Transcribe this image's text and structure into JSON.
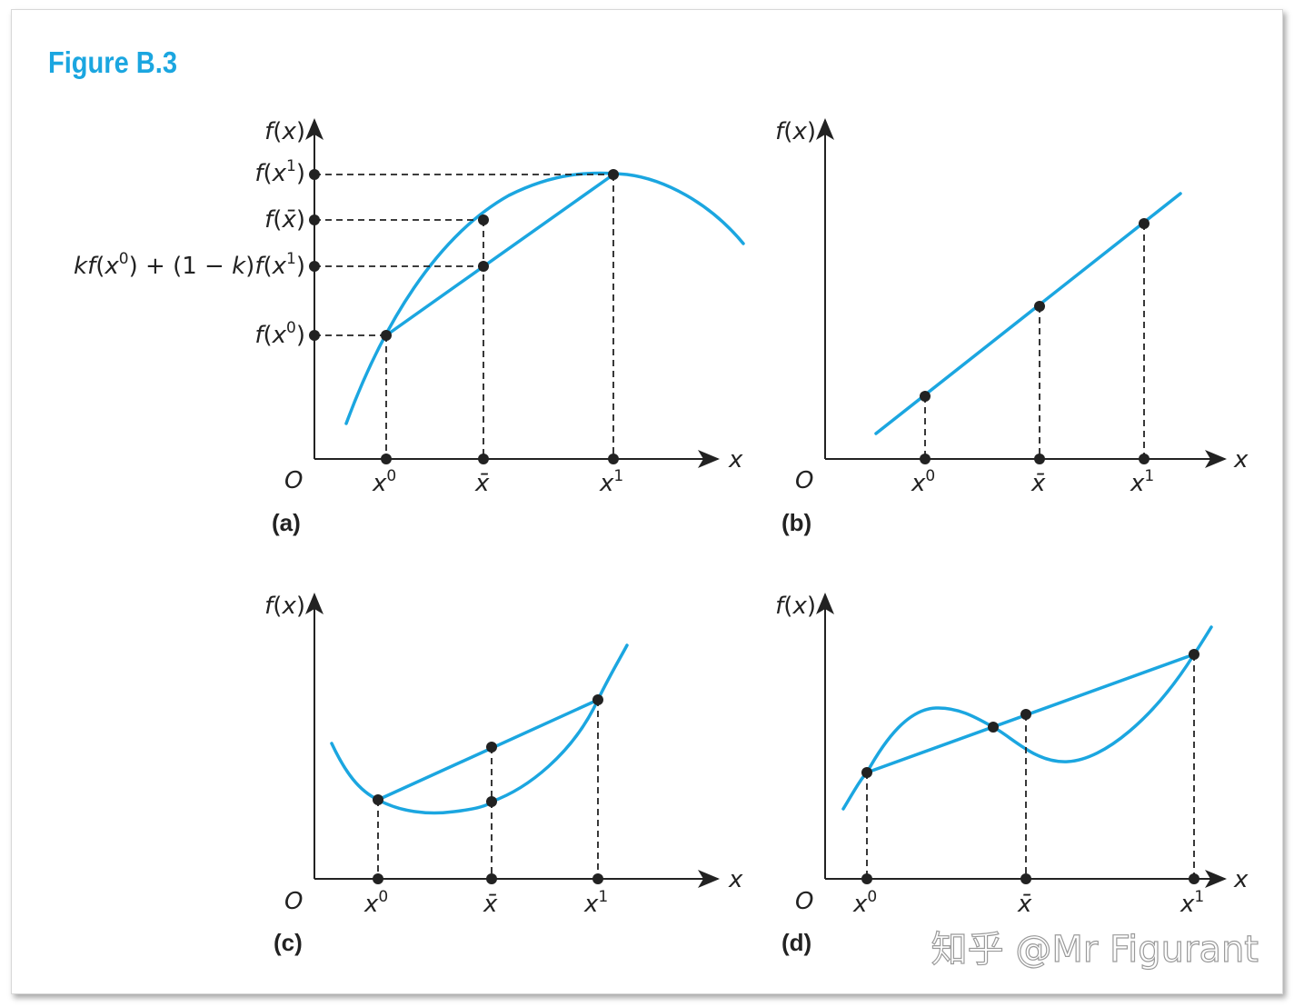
{
  "figure_title": "Figure B.3",
  "panels": {
    "a": {
      "label": "(a)",
      "y_axis": "f(x)",
      "x_axis": "x",
      "origin": "O",
      "x_ticks": [
        "x0",
        "x̄",
        "x1"
      ],
      "y_ticks": [
        "f(x1)",
        "f(x̄)",
        "kf(x0) + (1 − k)f(x1)",
        "f(x0)"
      ]
    },
    "b": {
      "label": "(b)",
      "y_axis": "f(x)",
      "x_axis": "x",
      "origin": "O",
      "x_ticks": [
        "x0",
        "x̄",
        "x1"
      ]
    },
    "c": {
      "label": "(c)",
      "y_axis": "f(x)",
      "x_axis": "x",
      "origin": "O",
      "x_ticks": [
        "x0",
        "x̄",
        "x1"
      ]
    },
    "d": {
      "label": "(d)",
      "y_axis": "f(x)",
      "x_axis": "x",
      "origin": "O",
      "x_ticks": [
        "x0",
        "x̄",
        "x1"
      ]
    }
  },
  "watermark": "知乎 @Mr Figurant",
  "colors": {
    "curve": "#1ba6e0",
    "title": "#1ba6e0",
    "ink": "#222222"
  }
}
